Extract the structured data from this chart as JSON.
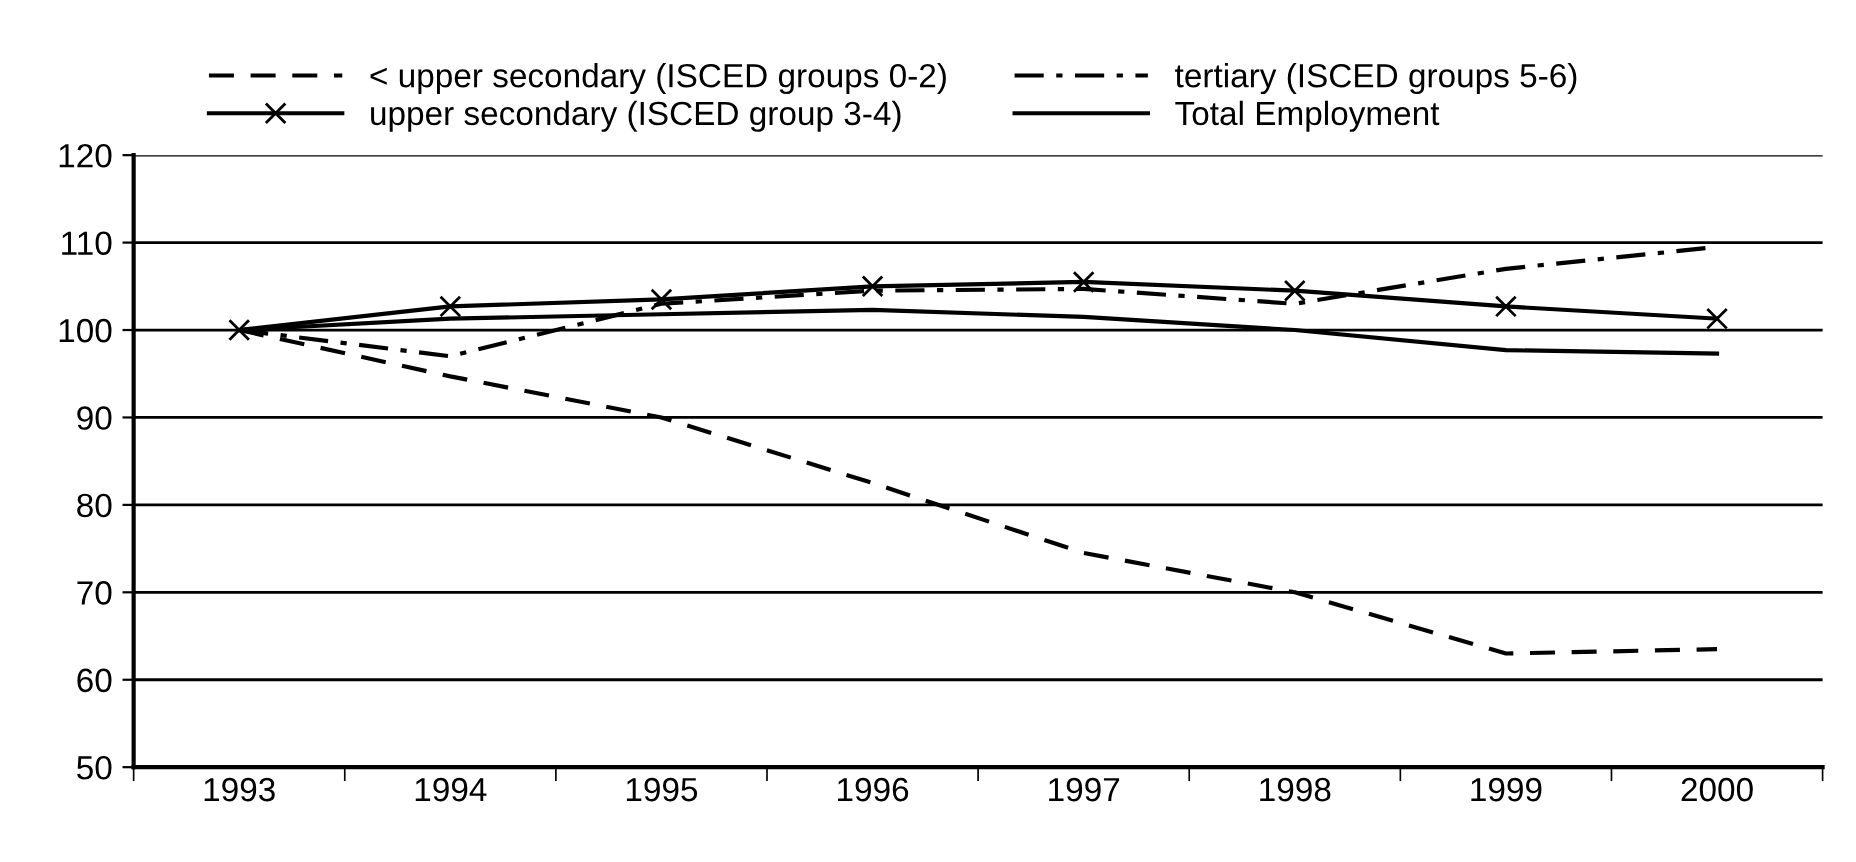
{
  "chart_data": {
    "type": "line",
    "categories": [
      "1993",
      "1994",
      "1995",
      "1996",
      "1997",
      "1998",
      "1999",
      "2000"
    ],
    "series": [
      {
        "name": "< upper secondary (ISCED groups 0-2)",
        "color": "#000000",
        "line_style": "dashed",
        "marker": "none",
        "values": [
          100,
          94.7,
          90,
          82.5,
          74.5,
          70,
          63,
          63.5
        ]
      },
      {
        "name": "upper secondary (ISCED group 3-4)",
        "color": "#000000",
        "line_style": "solid",
        "marker": "cross",
        "values": [
          100,
          102.7,
          103.5,
          105,
          105.5,
          104.5,
          102.7,
          101.3
        ]
      },
      {
        "name": "tertiary (ISCED groups 5-6)",
        "color": "#000000",
        "line_style": "dashdot",
        "marker": "none",
        "values": [
          100,
          97,
          103,
          104.5,
          104.7,
          103,
          107,
          109.5
        ]
      },
      {
        "name": "Total Employment",
        "color": "#000000",
        "line_style": "solid",
        "marker": "none",
        "values": [
          100,
          101.3,
          101.8,
          102.3,
          101.5,
          100,
          97.7,
          97.3
        ]
      }
    ],
    "ylim": [
      50,
      120
    ],
    "yticks": [
      50,
      60,
      70,
      80,
      90,
      100,
      110,
      120
    ],
    "grid": "y",
    "legend": "top"
  }
}
